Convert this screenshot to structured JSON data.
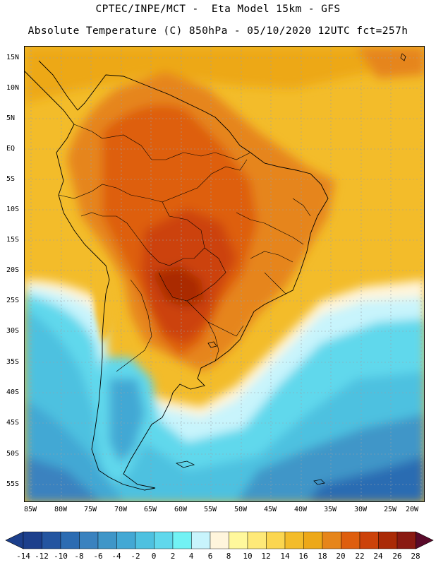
{
  "header": {
    "line1": "CPTEC/INPE/MCT -  Eta Model 15km - GFS",
    "line2": "Absolute Temperature (C) 850hPa - 05/10/2020 12UTC fct=257h"
  },
  "map": {
    "lat_labels": [
      "15N",
      "10N",
      "5N",
      "EQ",
      "5S",
      "10S",
      "15S",
      "20S",
      "25S",
      "30S",
      "35S",
      "40S",
      "45S",
      "50S",
      "55S"
    ],
    "lon_labels": [
      "85W",
      "80W",
      "75W",
      "70W",
      "65W",
      "60W",
      "55W",
      "50W",
      "45W",
      "40W",
      "35W",
      "30W",
      "25W",
      "20W"
    ]
  },
  "colorbar": {
    "labels": [
      "-14",
      "-12",
      "-10",
      "-8",
      "-6",
      "-4",
      "-2",
      "0",
      "2",
      "4",
      "6",
      "8",
      "10",
      "12",
      "14",
      "16",
      "18",
      "20",
      "22",
      "24",
      "26",
      "28"
    ],
    "colors": [
      "#1c3f8c",
      "#2455a0",
      "#2c6cb2",
      "#3a82bf",
      "#3f96c8",
      "#43a8d4",
      "#4ec1e0",
      "#60d8ec",
      "#72f2f4",
      "#c8f4fc",
      "#fff5dc",
      "#fff89c",
      "#fee978",
      "#fbd650",
      "#f3bc2a",
      "#eda818",
      "#e6851a",
      "#de5e0e",
      "#cc420a",
      "#aa2a06",
      "#8a1a12",
      "#5a0a2a"
    ]
  }
}
